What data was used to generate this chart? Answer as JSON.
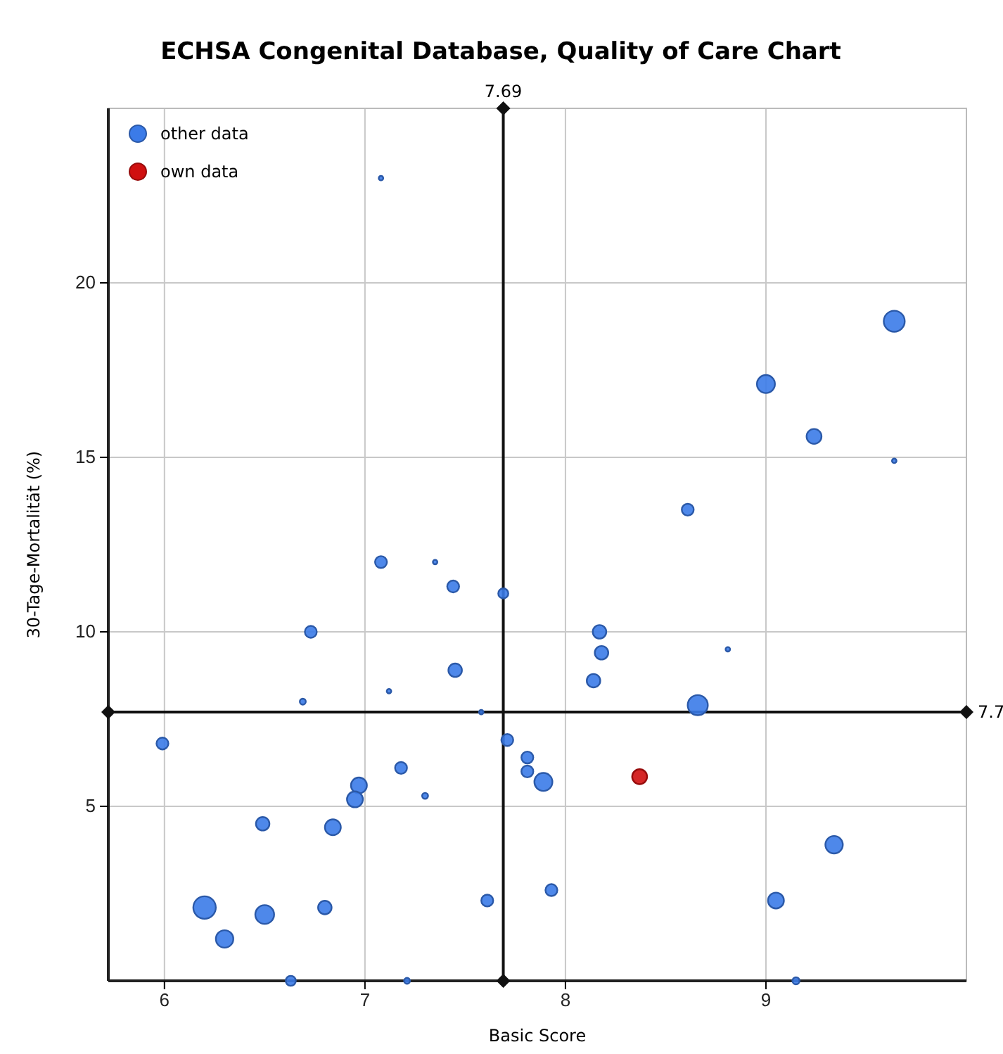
{
  "chart_data": {
    "type": "bubble",
    "title": "ECHSA Congenital Database, Quality of Care Chart",
    "xlabel": "Basic Score",
    "ylabel": "30-Tage-Mortalität (%)",
    "xlim": [
      5.72,
      10
    ],
    "xticks": [
      6,
      7,
      8,
      9
    ],
    "ylim": [
      0,
      25
    ],
    "yticks": [
      5,
      10,
      15,
      20
    ],
    "grid": true,
    "legend": "top left",
    "marker": "circle",
    "series": [
      {
        "name": "other data",
        "color": "#3b7be8",
        "x": [
          9.64,
          9.0,
          9.24,
          9.64,
          8.61,
          7.08,
          7.08,
          7.35,
          7.44,
          7.69,
          6.73,
          7.45,
          7.12,
          6.69,
          7.58,
          5.99,
          7.71,
          7.81,
          7.81,
          7.89,
          7.18,
          6.97,
          6.95,
          7.3,
          6.49,
          6.84,
          6.2,
          6.5,
          6.3,
          6.8,
          7.61,
          6.63,
          7.21,
          8.17,
          8.18,
          8.14,
          8.81,
          8.66,
          7.93,
          9.34,
          9.05,
          9.15
        ],
        "values": [
          18.9,
          17.1,
          15.6,
          14.9,
          13.5,
          23.0,
          12.0,
          12.0,
          11.3,
          11.1,
          10.0,
          8.9,
          8.3,
          8.0,
          7.7,
          6.8,
          6.9,
          6.4,
          6.0,
          5.7,
          6.1,
          5.6,
          5.2,
          5.3,
          4.5,
          4.4,
          2.1,
          1.9,
          1.2,
          2.1,
          2.3,
          0,
          0,
          10.0,
          9.4,
          8.6,
          9.5,
          7.9,
          2.6,
          3.9,
          2.3,
          0
        ],
        "sizes": [
          0.87,
          0.64,
          0.44,
          0.04,
          0.28,
          0.04,
          0.28,
          0.04,
          0.28,
          0.2,
          0.28,
          0.36,
          0.04,
          0.07,
          0.04,
          0.28,
          0.28,
          0.28,
          0.28,
          0.64,
          0.28,
          0.5,
          0.5,
          0.07,
          0.36,
          0.5,
          1,
          0.7,
          0.6,
          0.36,
          0.28,
          0.2,
          0.07,
          0.36,
          0.36,
          0.36,
          0.04,
          0.8,
          0.28,
          0.6,
          0.5,
          0.1
        ]
      },
      {
        "name": "own data",
        "color": "#d01010",
        "x": [
          8.37
        ],
        "values": [
          5.85
        ],
        "sizes": [
          0.44
        ]
      }
    ],
    "ref_lines": [
      {
        "axis": "x",
        "value": 7.69,
        "label": "7.69"
      },
      {
        "axis": "y",
        "value": 7.7,
        "label": "7.7"
      }
    ]
  }
}
